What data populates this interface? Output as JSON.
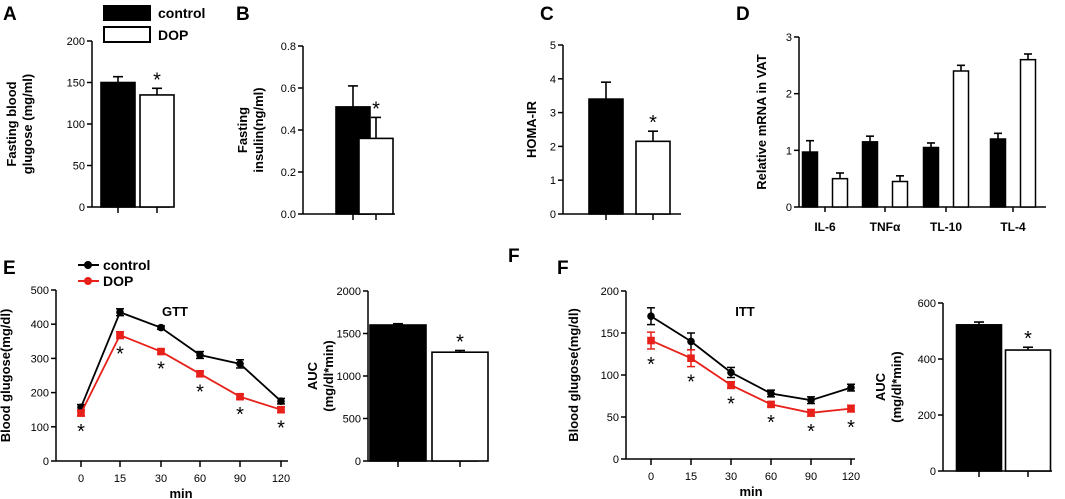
{
  "legend_top": {
    "control": "control",
    "dop": "DOP"
  },
  "colors": {
    "control": "#000000",
    "dop": "#e8201a",
    "bar_control": "#000000",
    "bar_dop": "#ffffff"
  },
  "chart_data": [
    {
      "id": "A",
      "type": "bar",
      "panel_label": "A",
      "ylabel": [
        "Fasting blood",
        "glugose (mg/ml)"
      ],
      "ylim": [
        0,
        200
      ],
      "yticks": [
        0,
        50,
        100,
        150,
        200
      ],
      "series": [
        {
          "name": "control",
          "value": 150,
          "err": 7
        },
        {
          "name": "DOP",
          "value": 135,
          "err": 8
        }
      ],
      "annotations": [
        "",
        "*"
      ]
    },
    {
      "id": "B",
      "type": "bar",
      "panel_label": "B",
      "ylabel": [
        "Fasting",
        "insulin(ng/ml)"
      ],
      "ylim": [
        0,
        0.8
      ],
      "yticks": [
        "0.0",
        "0.2",
        "0.4",
        "0.6",
        "0.8"
      ],
      "series": [
        {
          "name": "control",
          "value": 0.51,
          "err": 0.1
        },
        {
          "name": "DOP",
          "value": 0.36,
          "err": 0.1
        }
      ],
      "annotations": [
        "",
        "*"
      ]
    },
    {
      "id": "C",
      "type": "bar",
      "panel_label": "C",
      "ylabel": [
        "HOMA-IR"
      ],
      "ylim": [
        0,
        5
      ],
      "yticks": [
        0,
        1,
        2,
        3,
        4,
        5
      ],
      "series": [
        {
          "name": "control",
          "value": 3.4,
          "err": 0.5
        },
        {
          "name": "DOP",
          "value": 2.15,
          "err": 0.3
        }
      ],
      "annotations": [
        "",
        "*"
      ]
    },
    {
      "id": "D",
      "type": "bar",
      "panel_label": "D",
      "ylabel": [
        "Relative mRNA  in VAT"
      ],
      "ylim": [
        0,
        3
      ],
      "yticks": [
        0,
        1,
        2,
        3
      ],
      "categories": [
        "IL-6",
        "TNFα",
        "TL-10",
        "TL-4"
      ],
      "series": [
        {
          "name": "control",
          "values": [
            0.97,
            1.15,
            1.05,
            1.2
          ],
          "err": [
            0.2,
            0.1,
            0.08,
            0.1
          ]
        },
        {
          "name": "DOP",
          "values": [
            0.5,
            0.45,
            2.4,
            2.6
          ],
          "err": [
            0.1,
            0.1,
            0.1,
            0.1
          ]
        }
      ]
    },
    {
      "id": "E_line",
      "type": "line",
      "panel_label": "E",
      "title": "GTT",
      "ylabel": [
        "Blood glugose(mg/dl)"
      ],
      "xlabel": "min",
      "ylim": [
        0,
        500
      ],
      "yticks": [
        0,
        100,
        200,
        300,
        400,
        500
      ],
      "x": [
        0,
        15,
        30,
        60,
        90,
        120
      ],
      "series": [
        {
          "name": "control",
          "values": [
            157,
            435,
            390,
            310,
            284,
            175
          ],
          "err": [
            8,
            10,
            5,
            10,
            12,
            8
          ]
        },
        {
          "name": "DOP",
          "values": [
            140,
            368,
            320,
            255,
            188,
            150
          ],
          "err": [
            8,
            10,
            6,
            8,
            7,
            8
          ]
        }
      ],
      "annotations": [
        "*",
        "*",
        "*",
        "*",
        "*",
        "*"
      ]
    },
    {
      "id": "E_auc",
      "type": "bar",
      "ylabel": [
        "AUC",
        "(mg/dl*min)"
      ],
      "ylim": [
        0,
        2000
      ],
      "yticks": [
        0,
        500,
        1000,
        1500,
        2000
      ],
      "series": [
        {
          "name": "control",
          "value": 1600,
          "err": 15
        },
        {
          "name": "DOP",
          "value": 1280,
          "err": 20
        }
      ],
      "annotations": [
        "",
        "*"
      ]
    },
    {
      "id": "F_line",
      "type": "line",
      "panel_label": "F",
      "title": "ITT",
      "ylabel": [
        "Blood glugose(mg/dl)"
      ],
      "xlabel": "min",
      "ylim": [
        0,
        200
      ],
      "yticks": [
        0,
        50,
        100,
        150,
        200
      ],
      "x": [
        0,
        15,
        30,
        60,
        90,
        120
      ],
      "series": [
        {
          "name": "control",
          "values": [
            170,
            140,
            103,
            78,
            70,
            85
          ],
          "err": [
            10,
            10,
            6,
            4,
            4,
            4
          ]
        },
        {
          "name": "DOP",
          "values": [
            141,
            120,
            88,
            65,
            55,
            60
          ],
          "err": [
            10,
            10,
            4,
            3,
            4,
            4
          ]
        }
      ],
      "annotations": [
        "*",
        "*",
        "*",
        "*",
        "*",
        "*"
      ]
    },
    {
      "id": "F_auc",
      "type": "bar",
      "ylabel": [
        "AUC",
        "(mg/dl*min)"
      ],
      "ylim": [
        0,
        600
      ],
      "yticks": [
        0,
        200,
        400,
        600
      ],
      "series": [
        {
          "name": "control",
          "value": 522,
          "err": 10
        },
        {
          "name": "DOP",
          "value": 432,
          "err": 10
        }
      ],
      "annotations": [
        "",
        "*"
      ]
    }
  ],
  "legend_e": {
    "control": "control",
    "dop": "DOP"
  },
  "stray_label": "F"
}
